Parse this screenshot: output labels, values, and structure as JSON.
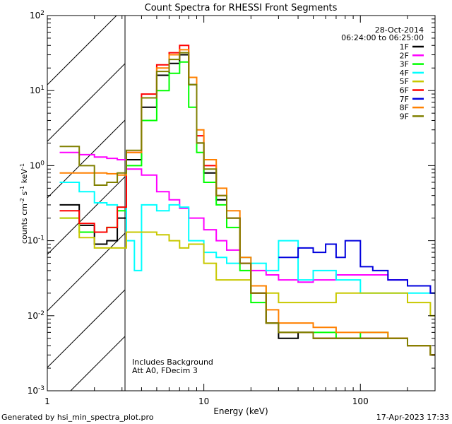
{
  "chart_data": {
    "type": "line",
    "title": "Count Spectra for RHESSI Front Segments",
    "xlabel": "Energy (keV)",
    "ylabel": "counts cm-2 s-1 keV-1",
    "x_scale": "log",
    "y_scale": "log",
    "xlim": [
      1,
      300
    ],
    "ylim": [
      0.001,
      100
    ],
    "x_ticks": [
      {
        "value": 1,
        "label": "1"
      },
      {
        "value": 10,
        "label": "10"
      },
      {
        "value": 100,
        "label": "100"
      }
    ],
    "y_ticks": [
      {
        "value": 0.001,
        "base": "10",
        "exp": "-3"
      },
      {
        "value": 0.01,
        "base": "10",
        "exp": "-2"
      },
      {
        "value": 0.1,
        "base": "10",
        "exp": "-1"
      },
      {
        "value": 1,
        "base": "10",
        "exp": "0"
      },
      {
        "value": 10,
        "base": "10",
        "exp": "1"
      },
      {
        "value": 100,
        "base": "10",
        "exp": "2"
      }
    ],
    "excluded_region_max_keV": 3,
    "legend": {
      "placement": "top-right",
      "date": "28-Oct-2014",
      "time_range": "06:24:00 to 06:25:00"
    },
    "annotations": [
      "Includes Background",
      "Att A0, FDecim 3"
    ],
    "series": [
      {
        "name": "1F",
        "color": "#000000",
        "points": [
          [
            1.2,
            0.3
          ],
          [
            1.6,
            0.16
          ],
          [
            2.0,
            0.09
          ],
          [
            2.4,
            0.1
          ],
          [
            2.8,
            0.2
          ],
          [
            3.2,
            1.2
          ],
          [
            4.0,
            6
          ],
          [
            5.0,
            16
          ],
          [
            6.0,
            23
          ],
          [
            7.0,
            30
          ],
          [
            8.0,
            12
          ],
          [
            9.0,
            2
          ],
          [
            10,
            0.8
          ],
          [
            12,
            0.35
          ],
          [
            14,
            0.2
          ],
          [
            17,
            0.05
          ],
          [
            20,
            0.02
          ],
          [
            25,
            0.008
          ],
          [
            30,
            0.005
          ],
          [
            40,
            0.006
          ],
          [
            50,
            0.005
          ],
          [
            70,
            0.005
          ],
          [
            100,
            0.005
          ],
          [
            150,
            0.005
          ],
          [
            200,
            0.004
          ],
          [
            280,
            0.003
          ]
        ]
      },
      {
        "name": "2F",
        "color": "#ff00ff",
        "points": [
          [
            1.2,
            1.5
          ],
          [
            1.6,
            1.4
          ],
          [
            2.0,
            1.3
          ],
          [
            2.4,
            1.25
          ],
          [
            2.8,
            1.2
          ],
          [
            3.2,
            0.9
          ],
          [
            4.0,
            0.75
          ],
          [
            5.0,
            0.45
          ],
          [
            6.0,
            0.35
          ],
          [
            7.0,
            0.27
          ],
          [
            8.0,
            0.2
          ],
          [
            10,
            0.14
          ],
          [
            12,
            0.1
          ],
          [
            14,
            0.075
          ],
          [
            17,
            0.05
          ],
          [
            20,
            0.04
          ],
          [
            25,
            0.035
          ],
          [
            30,
            0.03
          ],
          [
            40,
            0.028
          ],
          [
            50,
            0.03
          ],
          [
            70,
            0.035
          ],
          [
            100,
            0.035
          ],
          [
            150,
            0.03
          ],
          [
            200,
            0.025
          ],
          [
            280,
            0.02
          ]
        ]
      },
      {
        "name": "3F",
        "color": "#00ff00",
        "points": [
          [
            1.2,
            0.2
          ],
          [
            1.6,
            0.13
          ],
          [
            2.0,
            0.13
          ],
          [
            2.4,
            0.15
          ],
          [
            2.8,
            0.25
          ],
          [
            3.2,
            1.0
          ],
          [
            4.0,
            4
          ],
          [
            5.0,
            10
          ],
          [
            6.0,
            17
          ],
          [
            7.0,
            24
          ],
          [
            8.0,
            6
          ],
          [
            9.0,
            1.5
          ],
          [
            10,
            0.6
          ],
          [
            12,
            0.3
          ],
          [
            14,
            0.15
          ],
          [
            17,
            0.04
          ],
          [
            20,
            0.015
          ],
          [
            25,
            0.008
          ],
          [
            30,
            0.006
          ],
          [
            40,
            0.006
          ],
          [
            50,
            0.006
          ],
          [
            70,
            0.005
          ],
          [
            100,
            0.006
          ],
          [
            150,
            0.005
          ],
          [
            200,
            0.004
          ],
          [
            280,
            0.003
          ]
        ]
      },
      {
        "name": "4F",
        "color": "#00ffff",
        "points": [
          [
            1.2,
            0.6
          ],
          [
            1.6,
            0.45
          ],
          [
            2.0,
            0.32
          ],
          [
            2.4,
            0.3
          ],
          [
            2.8,
            0.28
          ],
          [
            3.2,
            0.1
          ],
          [
            3.6,
            0.04
          ],
          [
            4.0,
            0.3
          ],
          [
            5.0,
            0.25
          ],
          [
            6.0,
            0.3
          ],
          [
            7.0,
            0.28
          ],
          [
            8.0,
            0.1
          ],
          [
            10,
            0.07
          ],
          [
            12,
            0.06
          ],
          [
            14,
            0.05
          ],
          [
            17,
            0.06
          ],
          [
            20,
            0.05
          ],
          [
            25,
            0.04
          ],
          [
            30,
            0.1
          ],
          [
            40,
            0.03
          ],
          [
            50,
            0.04
          ],
          [
            70,
            0.03
          ],
          [
            100,
            0.02
          ],
          [
            150,
            0.02
          ],
          [
            200,
            0.02
          ],
          [
            280,
            0.02
          ]
        ]
      },
      {
        "name": "5F",
        "color": "#c8c800",
        "points": [
          [
            1.2,
            0.2
          ],
          [
            1.6,
            0.11
          ],
          [
            2.0,
            0.08
          ],
          [
            2.4,
            0.08
          ],
          [
            2.8,
            0.08
          ],
          [
            3.2,
            0.13
          ],
          [
            4.0,
            0.13
          ],
          [
            5.0,
            0.12
          ],
          [
            6.0,
            0.1
          ],
          [
            7.0,
            0.08
          ],
          [
            8.0,
            0.09
          ],
          [
            10,
            0.05
          ],
          [
            12,
            0.03
          ],
          [
            14,
            0.03
          ],
          [
            17,
            0.03
          ],
          [
            20,
            0.025
          ],
          [
            25,
            0.02
          ],
          [
            30,
            0.015
          ],
          [
            40,
            0.015
          ],
          [
            50,
            0.015
          ],
          [
            70,
            0.02
          ],
          [
            100,
            0.02
          ],
          [
            150,
            0.02
          ],
          [
            200,
            0.015
          ],
          [
            280,
            0.01
          ]
        ]
      },
      {
        "name": "6F",
        "color": "#ff0000",
        "points": [
          [
            1.2,
            0.25
          ],
          [
            1.6,
            0.17
          ],
          [
            2.0,
            0.13
          ],
          [
            2.4,
            0.15
          ],
          [
            2.8,
            0.28
          ],
          [
            3.2,
            1.5
          ],
          [
            4.0,
            9
          ],
          [
            5.0,
            22
          ],
          [
            6.0,
            32
          ],
          [
            7.0,
            40
          ],
          [
            8.0,
            15
          ],
          [
            9.0,
            2.5
          ],
          [
            10,
            1.0
          ],
          [
            12,
            0.4
          ],
          [
            14,
            0.2
          ],
          [
            17,
            0.05
          ],
          [
            20,
            0.02
          ],
          [
            25,
            0.008
          ],
          [
            30,
            0.006
          ],
          [
            40,
            0.006
          ],
          [
            50,
            0.005
          ],
          [
            70,
            0.005
          ],
          [
            100,
            0.005
          ],
          [
            150,
            0.005
          ],
          [
            200,
            0.004
          ],
          [
            280,
            0.003
          ]
        ]
      },
      {
        "name": "7F",
        "color": "#0000dd",
        "points": [
          [
            30,
            0.06
          ],
          [
            40,
            0.08
          ],
          [
            50,
            0.07
          ],
          [
            60,
            0.09
          ],
          [
            70,
            0.06
          ],
          [
            80,
            0.1
          ],
          [
            100,
            0.045
          ],
          [
            120,
            0.04
          ],
          [
            150,
            0.03
          ],
          [
            200,
            0.025
          ],
          [
            280,
            0.02
          ]
        ]
      },
      {
        "name": "8F",
        "color": "#ff8000",
        "points": [
          [
            1.2,
            0.8
          ],
          [
            1.6,
            0.8
          ],
          [
            2.0,
            0.8
          ],
          [
            2.4,
            0.78
          ],
          [
            2.8,
            0.75
          ],
          [
            3.2,
            1.5
          ],
          [
            4.0,
            8
          ],
          [
            5.0,
            20
          ],
          [
            6.0,
            30
          ],
          [
            7.0,
            35
          ],
          [
            8.0,
            15
          ],
          [
            9.0,
            3
          ],
          [
            10,
            1.2
          ],
          [
            12,
            0.5
          ],
          [
            14,
            0.25
          ],
          [
            17,
            0.06
          ],
          [
            20,
            0.025
          ],
          [
            25,
            0.012
          ],
          [
            30,
            0.008
          ],
          [
            40,
            0.008
          ],
          [
            50,
            0.007
          ],
          [
            70,
            0.006
          ],
          [
            100,
            0.006
          ],
          [
            150,
            0.005
          ],
          [
            200,
            0.004
          ],
          [
            280,
            0.003
          ]
        ]
      },
      {
        "name": "9F",
        "color": "#808000",
        "points": [
          [
            1.2,
            1.8
          ],
          [
            1.6,
            1.0
          ],
          [
            2.0,
            0.55
          ],
          [
            2.4,
            0.6
          ],
          [
            2.8,
            0.8
          ],
          [
            3.2,
            1.6
          ],
          [
            4.0,
            8
          ],
          [
            5.0,
            18
          ],
          [
            6.0,
            26
          ],
          [
            7.0,
            32
          ],
          [
            8.0,
            12
          ],
          [
            9.0,
            2
          ],
          [
            10,
            0.9
          ],
          [
            12,
            0.4
          ],
          [
            14,
            0.2
          ],
          [
            17,
            0.05
          ],
          [
            20,
            0.02
          ],
          [
            25,
            0.008
          ],
          [
            30,
            0.006
          ],
          [
            40,
            0.006
          ],
          [
            50,
            0.005
          ],
          [
            70,
            0.005
          ],
          [
            100,
            0.005
          ],
          [
            150,
            0.005
          ],
          [
            200,
            0.004
          ],
          [
            280,
            0.003
          ]
        ]
      }
    ]
  },
  "footer": {
    "left": "Generated by hsi_min_spectra_plot.pro",
    "right": "17-Apr-2023 17:33"
  }
}
